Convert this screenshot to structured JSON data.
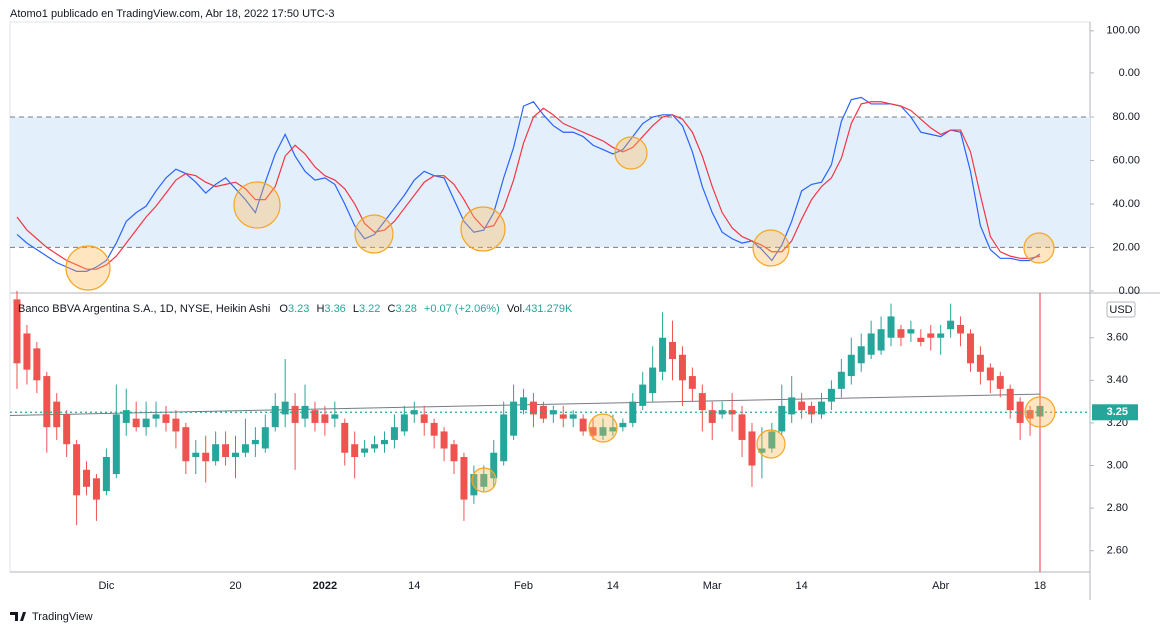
{
  "header": "Atomo1 publicado en TradingView.com, Abr 18, 2022 17:50 UTC-3",
  "footer": "TradingView",
  "chart_data": [
    {
      "type": "line",
      "ylim": [
        -0.5,
        123.7
      ],
      "yticks": [
        {
          "value": 0,
          "label": "0.00"
        },
        {
          "value": 20,
          "label": "20.00"
        },
        {
          "value": 40,
          "label": "40.00"
        },
        {
          "value": 60,
          "label": "60.00"
        },
        {
          "value": 80,
          "label": "80.00"
        }
      ],
      "y2lim": [
        -521,
        121
      ],
      "y2ticks": [
        {
          "value": 100,
          "label": "100.00"
        },
        {
          "value": 0,
          "label": "0.00"
        }
      ],
      "band": [
        20,
        80
      ],
      "band_color": "#e3f0fc",
      "series": [
        {
          "color": "#2962ff",
          "values": [
            26,
            22,
            19,
            16,
            13,
            11,
            9,
            9,
            11,
            14,
            22,
            32,
            36,
            39,
            46,
            52,
            56,
            54,
            50,
            45,
            49,
            52,
            47,
            42,
            36,
            50,
            63,
            72,
            62,
            55,
            51,
            52,
            49,
            40,
            30,
            24,
            26,
            32,
            38,
            44,
            51,
            55,
            53,
            52,
            42,
            32,
            27,
            28,
            36,
            52,
            66,
            85,
            87,
            81,
            76,
            73,
            73,
            71,
            67,
            65,
            63,
            65,
            71,
            77,
            80,
            81,
            81,
            76,
            64,
            48,
            36,
            27,
            24,
            22,
            23,
            19,
            14,
            21,
            32,
            46,
            49,
            50,
            58,
            78,
            88,
            89,
            86,
            86,
            86,
            85,
            80,
            73,
            72,
            71,
            74,
            73,
            55,
            30,
            19,
            15,
            15,
            14,
            14,
            17
          ]
        },
        {
          "color": "#f23645",
          "values": [
            34,
            28,
            24,
            20,
            17,
            14,
            12,
            10,
            10,
            12,
            16,
            22,
            28,
            34,
            39,
            45,
            51,
            54,
            53,
            50,
            48,
            49,
            50,
            47,
            42,
            42,
            48,
            62,
            67,
            63,
            57,
            53,
            51,
            47,
            40,
            31,
            27,
            28,
            32,
            38,
            44,
            50,
            53,
            53,
            49,
            42,
            34,
            29,
            30,
            38,
            51,
            68,
            80,
            84,
            81,
            77,
            75,
            73,
            71,
            69,
            66,
            64,
            66,
            71,
            76,
            80,
            81,
            79,
            73,
            62,
            48,
            36,
            29,
            25,
            23,
            21,
            18,
            18,
            23,
            33,
            42,
            48,
            52,
            61,
            77,
            86,
            87,
            87,
            86,
            85,
            83,
            79,
            75,
            72,
            74,
            74,
            64,
            44,
            25,
            18,
            16,
            15,
            15,
            16
          ]
        }
      ]
    },
    {
      "type": "candlestick",
      "title": "Banco BBVA Argentina S.A., 1D, NYSE, Heikin Ashi",
      "legend": [
        {
          "key": "O",
          "value": "3.23"
        },
        {
          "key": "H",
          "value": "3.36"
        },
        {
          "key": "L",
          "value": "3.22"
        },
        {
          "key": "C",
          "value": "3.28"
        }
      ],
      "change": "+0.07 (+2.06%)",
      "volume_key": "Vol.",
      "volume": "431.279K",
      "currency": "USD",
      "last_price": 3.25,
      "up_color": "#26a69a",
      "down_color": "#ef5350",
      "trendline": [
        3.235,
        3.335
      ],
      "ylim": [
        2.5,
        3.81
      ],
      "yticks": [
        {
          "value": 2.6,
          "label": "2.60"
        },
        {
          "value": 2.8,
          "label": "2.80"
        },
        {
          "value": 3.0,
          "label": "3.00"
        },
        {
          "value": 3.2,
          "label": "3.20"
        },
        {
          "value": 3.4,
          "label": "3.40"
        },
        {
          "value": 3.6,
          "label": "3.60"
        }
      ],
      "categories": [
        null,
        null,
        null,
        null,
        null,
        null,
        null,
        null,
        null,
        "Dic",
        null,
        null,
        null,
        null,
        null,
        null,
        null,
        null,
        null,
        null,
        null,
        null,
        "20",
        null,
        null,
        null,
        null,
        null,
        null,
        null,
        null,
        "2022",
        null,
        null,
        null,
        null,
        null,
        null,
        null,
        null,
        "14",
        null,
        null,
        null,
        null,
        null,
        null,
        null,
        null,
        null,
        null,
        "Feb",
        null,
        null,
        null,
        null,
        null,
        null,
        null,
        null,
        "14",
        null,
        null,
        null,
        null,
        null,
        null,
        null,
        null,
        null,
        "Mar",
        null,
        null,
        null,
        null,
        null,
        null,
        null,
        null,
        "14",
        null,
        null,
        null,
        null,
        null,
        null,
        null,
        null,
        null,
        null,
        null,
        null,
        null,
        "Abr",
        null,
        null,
        null,
        null,
        null,
        null,
        null,
        null,
        null,
        "18"
      ],
      "open": [
        3.78,
        3.62,
        3.55,
        3.42,
        3.3,
        3.24,
        3.1,
        2.98,
        2.94,
        2.88,
        2.96,
        3.2,
        3.22,
        3.18,
        3.22,
        3.24,
        3.22,
        3.18,
        3.04,
        3.06,
        3.02,
        3.1,
        3.04,
        3.06,
        3.1,
        3.08,
        3.18,
        3.24,
        3.28,
        3.22,
        3.26,
        3.24,
        3.22,
        3.2,
        3.1,
        3.06,
        3.08,
        3.1,
        3.12,
        3.16,
        3.24,
        3.24,
        3.2,
        3.16,
        3.1,
        3.04,
        2.86,
        2.9,
        2.94,
        3.02,
        3.14,
        3.26,
        3.3,
        3.28,
        3.24,
        3.24,
        3.22,
        3.22,
        3.18,
        3.14,
        3.16,
        3.18,
        3.2,
        3.28,
        3.34,
        3.44,
        3.58,
        3.52,
        3.42,
        3.34,
        3.26,
        3.24,
        3.26,
        3.24,
        3.16,
        3.06,
        3.08,
        3.16,
        3.24,
        3.3,
        3.28,
        3.24,
        3.3,
        3.36,
        3.42,
        3.48,
        3.52,
        3.54,
        3.6,
        3.64,
        3.62,
        3.6,
        3.62,
        3.6,
        3.64,
        3.66,
        3.62,
        3.52,
        3.46,
        3.42,
        3.36,
        3.3,
        3.26,
        3.23
      ],
      "high": [
        3.82,
        3.66,
        3.58,
        3.44,
        3.34,
        3.26,
        3.12,
        3.02,
        2.96,
        3.08,
        3.38,
        3.36,
        3.3,
        3.3,
        3.3,
        3.28,
        3.26,
        3.2,
        3.12,
        3.14,
        3.16,
        3.16,
        3.14,
        3.22,
        3.18,
        3.24,
        3.34,
        3.5,
        3.34,
        3.38,
        3.3,
        3.28,
        3.3,
        3.22,
        3.16,
        3.12,
        3.14,
        3.16,
        3.24,
        3.28,
        3.3,
        3.28,
        3.22,
        3.18,
        3.12,
        3.06,
        3.0,
        3.0,
        3.12,
        3.3,
        3.38,
        3.36,
        3.34,
        3.3,
        3.28,
        3.28,
        3.26,
        3.24,
        3.22,
        3.22,
        3.24,
        3.22,
        3.34,
        3.44,
        3.56,
        3.72,
        3.68,
        3.56,
        3.46,
        3.38,
        3.3,
        3.3,
        3.34,
        3.28,
        3.2,
        3.18,
        3.2,
        3.38,
        3.42,
        3.34,
        3.3,
        3.34,
        3.4,
        3.5,
        3.6,
        3.62,
        3.68,
        3.7,
        3.76,
        3.66,
        3.68,
        3.64,
        3.66,
        3.66,
        3.76,
        3.7,
        3.64,
        3.56,
        3.48,
        3.44,
        3.38,
        3.32,
        3.28,
        3.36
      ],
      "low": [
        3.36,
        3.38,
        3.34,
        3.06,
        3.12,
        3.04,
        2.72,
        2.86,
        2.74,
        2.86,
        2.94,
        3.14,
        3.16,
        3.14,
        3.18,
        3.16,
        3.08,
        2.96,
        2.96,
        2.92,
        3.0,
        3.0,
        2.94,
        3.04,
        3.04,
        3.06,
        3.16,
        3.18,
        2.98,
        3.18,
        3.16,
        3.14,
        3.18,
        3.0,
        2.94,
        3.04,
        3.06,
        3.06,
        3.08,
        3.14,
        3.2,
        3.14,
        3.08,
        3.02,
        2.96,
        2.74,
        2.82,
        2.88,
        2.9,
        3.0,
        3.12,
        3.24,
        3.18,
        3.2,
        3.2,
        3.18,
        3.18,
        3.14,
        3.12,
        3.12,
        3.14,
        3.16,
        3.18,
        3.26,
        3.3,
        3.4,
        3.4,
        3.28,
        3.3,
        3.16,
        3.12,
        3.22,
        3.16,
        3.04,
        2.9,
        2.94,
        3.06,
        3.14,
        3.2,
        3.22,
        3.2,
        3.22,
        3.26,
        3.32,
        3.38,
        3.44,
        3.5,
        3.52,
        3.56,
        3.56,
        3.58,
        3.56,
        3.54,
        3.52,
        3.6,
        3.56,
        3.44,
        3.38,
        3.34,
        3.32,
        3.22,
        3.12,
        3.14,
        3.22
      ],
      "close": [
        3.48,
        3.45,
        3.4,
        3.18,
        3.18,
        3.1,
        2.86,
        2.9,
        2.84,
        3.04,
        3.24,
        3.26,
        3.18,
        3.22,
        3.24,
        3.2,
        3.16,
        3.02,
        3.06,
        3.02,
        3.1,
        3.04,
        3.06,
        3.1,
        3.12,
        3.18,
        3.28,
        3.3,
        3.2,
        3.28,
        3.2,
        3.2,
        3.24,
        3.06,
        3.04,
        3.08,
        3.1,
        3.12,
        3.18,
        3.24,
        3.26,
        3.2,
        3.14,
        3.08,
        3.02,
        2.84,
        2.96,
        2.96,
        3.06,
        3.24,
        3.3,
        3.32,
        3.24,
        3.22,
        3.26,
        3.22,
        3.24,
        3.16,
        3.14,
        3.18,
        3.18,
        3.2,
        3.3,
        3.38,
        3.46,
        3.6,
        3.5,
        3.4,
        3.36,
        3.26,
        3.2,
        3.26,
        3.24,
        3.12,
        3.0,
        3.08,
        3.16,
        3.28,
        3.32,
        3.26,
        3.24,
        3.3,
        3.36,
        3.44,
        3.52,
        3.56,
        3.62,
        3.64,
        3.7,
        3.6,
        3.64,
        3.58,
        3.6,
        3.62,
        3.68,
        3.62,
        3.48,
        3.44,
        3.4,
        3.36,
        3.26,
        3.2,
        3.22,
        3.28
      ]
    }
  ]
}
